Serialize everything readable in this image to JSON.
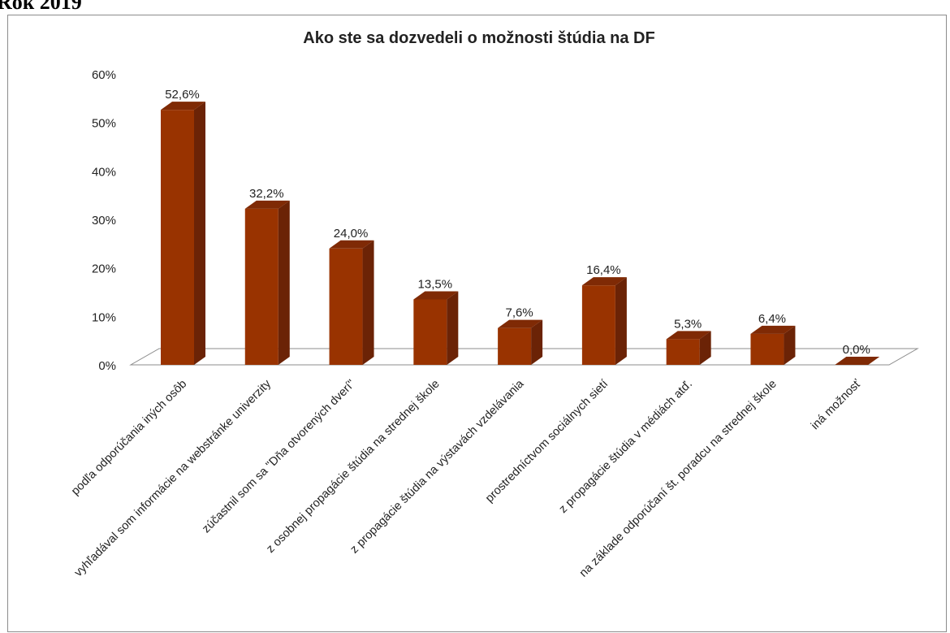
{
  "page_heading": "Rok 2019",
  "chart_data": {
    "type": "bar",
    "title": "Ako ste sa dozvedeli o možnosti štúdia na DF",
    "categories": [
      "podľa odporúčania iných osôb",
      "vyhľadával som informácie na webstránke univerzity",
      "zúčastnil som sa \"Dňa otvorených dverí\"",
      "z osobnej propagácie štúdia na strednej škole",
      "z propagácie štúdia na výstavách vzdelávania",
      "prostredníctvom sociálnych sietí",
      "z propagácie štúdia v médiách atď.",
      "na základe odporúčaní št. poradcu na strednej škole",
      "iná možnosť"
    ],
    "values": [
      52.6,
      32.2,
      24.0,
      13.5,
      7.6,
      16.4,
      5.3,
      6.4,
      0.0
    ],
    "data_labels": [
      "52,6%",
      "32,2%",
      "24,0%",
      "13,5%",
      "7,6%",
      "16,4%",
      "5,3%",
      "6,4%",
      "0,0%"
    ],
    "y_ticks": [
      "0%",
      "10%",
      "20%",
      "30%",
      "40%",
      "50%",
      "60%"
    ],
    "ylim": [
      0,
      60
    ],
    "xlabel": "",
    "ylabel": "",
    "legend": "none",
    "grid": false,
    "bar_colors": {
      "front": "#993300",
      "side": "#6b2306",
      "top": "#7f2a05"
    }
  }
}
